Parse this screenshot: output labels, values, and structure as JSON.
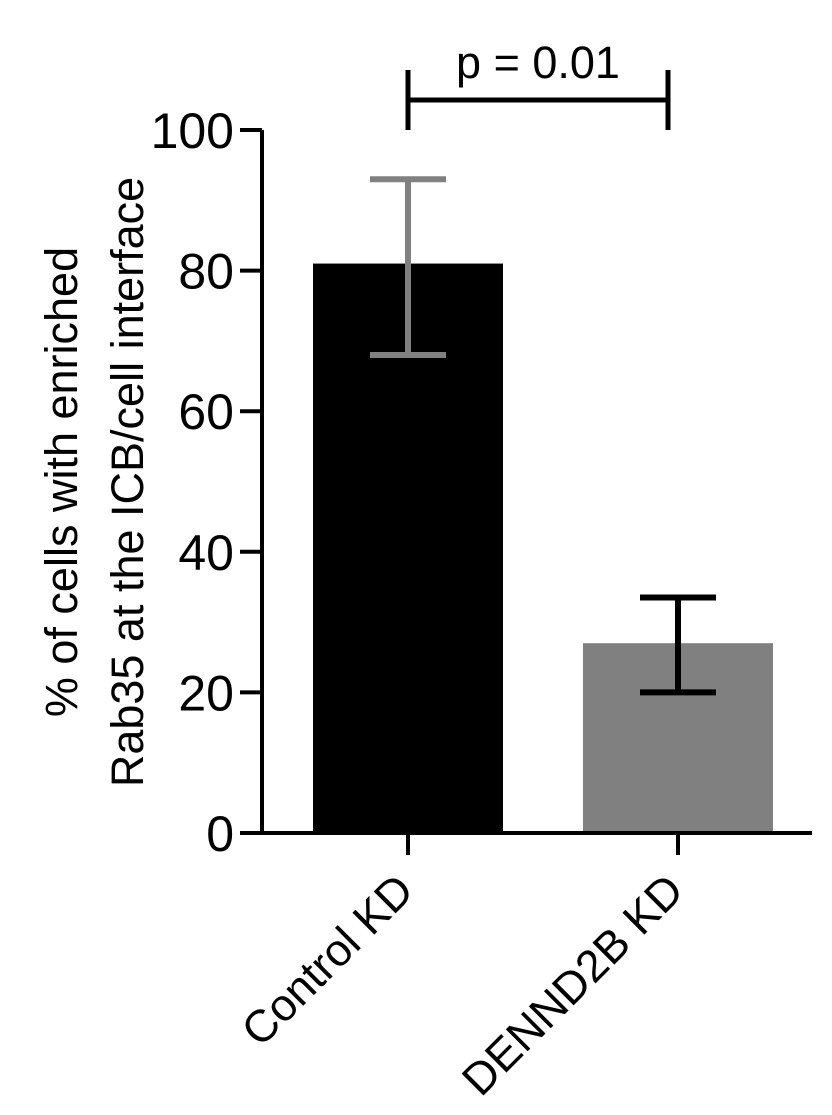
{
  "chart_data": {
    "type": "bar",
    "title": "",
    "xlabel": "",
    "ylabel_lines": [
      "% of cells with enriched",
      "Rab35 at the ICB/cell interface"
    ],
    "categories": [
      "Control KD",
      "DENND2B KD"
    ],
    "values": [
      81,
      27
    ],
    "error_low": [
      68,
      20
    ],
    "error_high": [
      93,
      33.5
    ],
    "bar_colors": [
      "#000000",
      "#808080"
    ],
    "error_colors": [
      "#808080",
      "#000000"
    ],
    "ylim": [
      0,
      100
    ],
    "yticks": [
      0,
      20,
      40,
      60,
      80,
      100
    ],
    "ytick_labels": [
      "0",
      "20",
      "40",
      "60",
      "80",
      "100"
    ],
    "annotation": {
      "text": "p = 0.01",
      "between": [
        "Control KD",
        "DENND2B KD"
      ],
      "at_value": 100
    },
    "grid": false,
    "legend": "none"
  }
}
